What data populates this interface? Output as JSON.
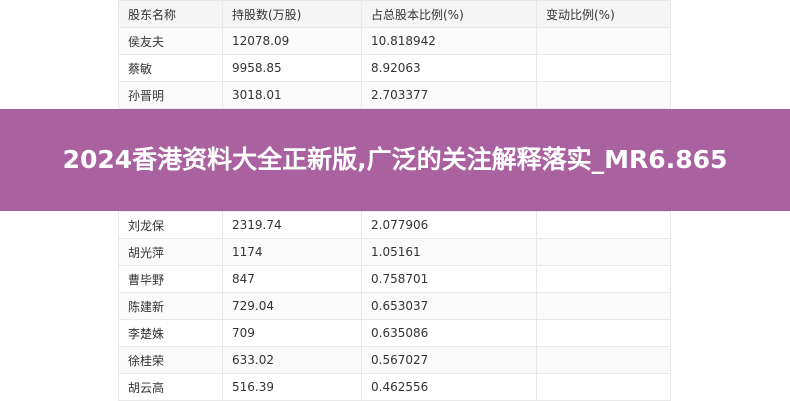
{
  "table": {
    "headers": [
      "股东名称",
      "持股数(万股)",
      "占总股本比例(%)",
      "变动比例(%)"
    ],
    "rows": [
      [
        "侯友夫",
        "12078.09",
        "10.818942",
        ""
      ],
      [
        "蔡敏",
        "9958.85",
        "8.92063",
        ""
      ],
      [
        "孙晋明",
        "3018.01",
        "2.703377",
        ""
      ],
      [
        "刘龙保",
        "2319.74",
        "2.077906",
        ""
      ],
      [
        "胡光萍",
        "1174",
        "1.05161",
        ""
      ],
      [
        "曹毕野",
        "847",
        "0.758701",
        ""
      ],
      [
        "陈建新",
        "729.04",
        "0.653037",
        ""
      ],
      [
        "李楚姝",
        "709",
        "0.635086",
        ""
      ],
      [
        "徐桂荣",
        "633.02",
        "0.567027",
        ""
      ],
      [
        "胡云高",
        "516.39",
        "0.462556",
        ""
      ]
    ]
  },
  "banner": {
    "title": "2024香港资料大全正新版,广泛的关注解释落实_MR6.865",
    "color": "#a8609f"
  }
}
